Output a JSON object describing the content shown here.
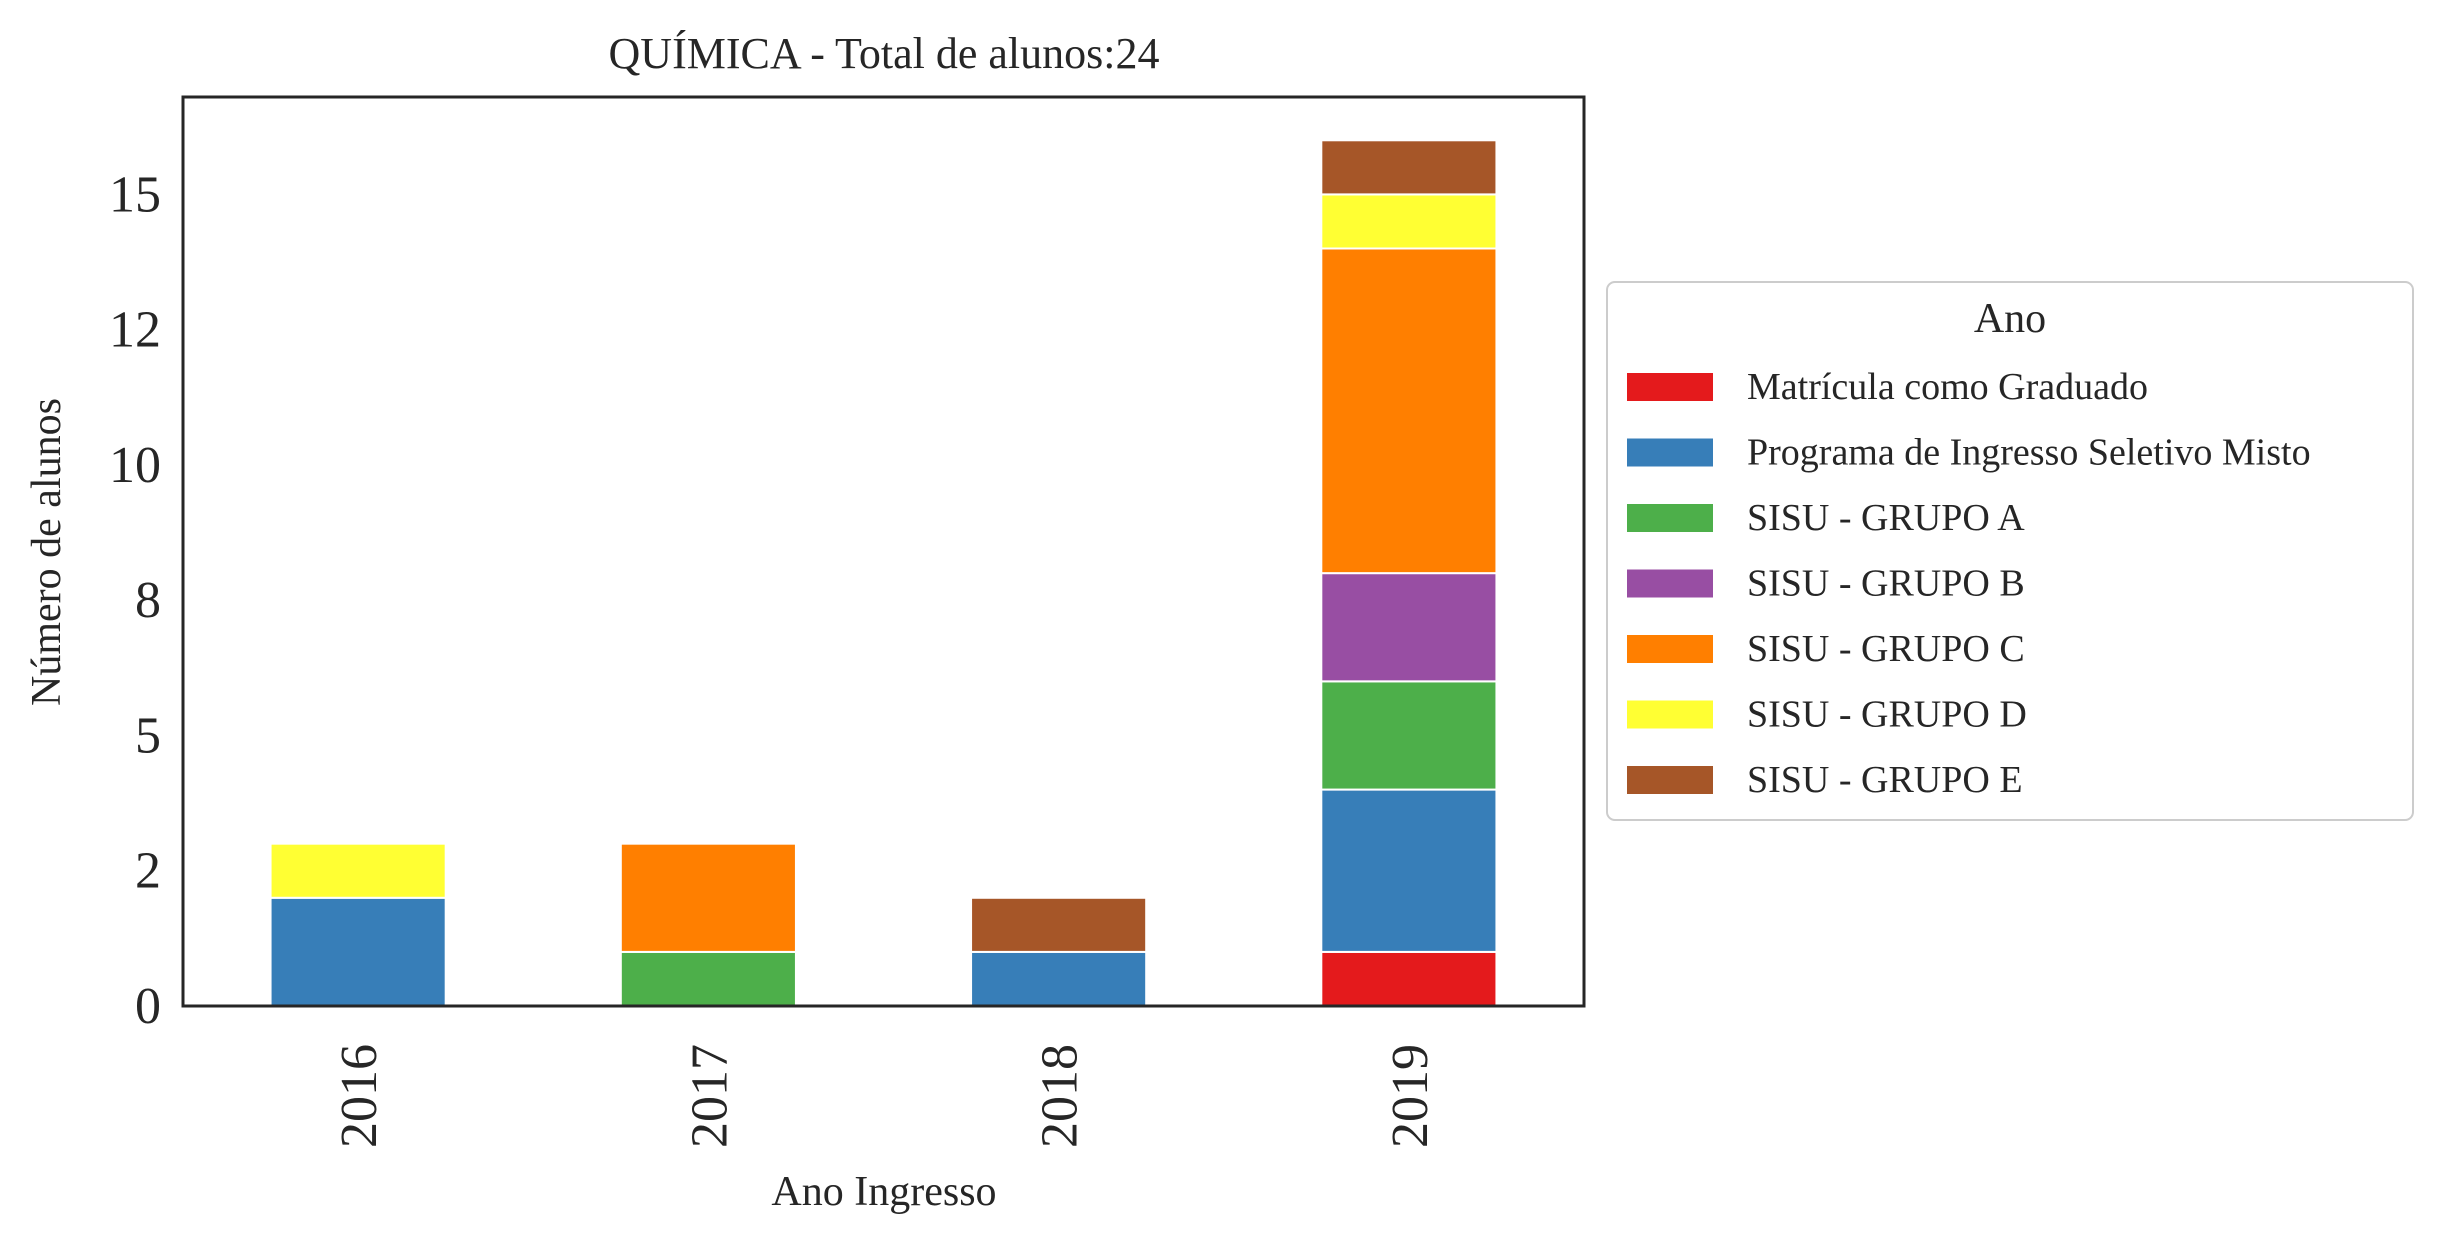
{
  "chart_data": {
    "type": "bar",
    "stacked": true,
    "title": "QUÍMICA - Total de alunos:24",
    "xlabel": "Ano Ingresso",
    "ylabel": "Número de alunos",
    "categories": [
      "2016",
      "2017",
      "2018",
      "2019"
    ],
    "ylim": [
      0,
      16.8
    ],
    "yticks": [
      0,
      2.5,
      5,
      7.5,
      10,
      12.5,
      15
    ],
    "ytick_labels": [
      "0",
      "2",
      "5",
      "8",
      "10",
      "12",
      "15"
    ],
    "grid": false,
    "legend": {
      "title": "Ano",
      "placement": "center-right outside"
    },
    "series": [
      {
        "name": "Matrícula como Graduado",
        "color": "#e41a1c",
        "values": [
          0,
          0,
          0,
          1
        ]
      },
      {
        "name": "Programa de Ingresso Seletivo Misto",
        "color": "#377eb8",
        "values": [
          2,
          0,
          1,
          3
        ]
      },
      {
        "name": "SISU - GRUPO A",
        "color": "#4daf4a",
        "values": [
          0,
          1,
          0,
          2
        ]
      },
      {
        "name": "SISU - GRUPO B",
        "color": "#984ea3",
        "values": [
          0,
          0,
          0,
          2
        ]
      },
      {
        "name": "SISU - GRUPO C",
        "color": "#ff7f00",
        "values": [
          0,
          2,
          0,
          6
        ]
      },
      {
        "name": "SISU - GRUPO D",
        "color": "#ffff33",
        "values": [
          1,
          0,
          0,
          1
        ]
      },
      {
        "name": "SISU - GRUPO E",
        "color": "#a65628",
        "values": [
          0,
          0,
          1,
          1
        ]
      }
    ]
  }
}
